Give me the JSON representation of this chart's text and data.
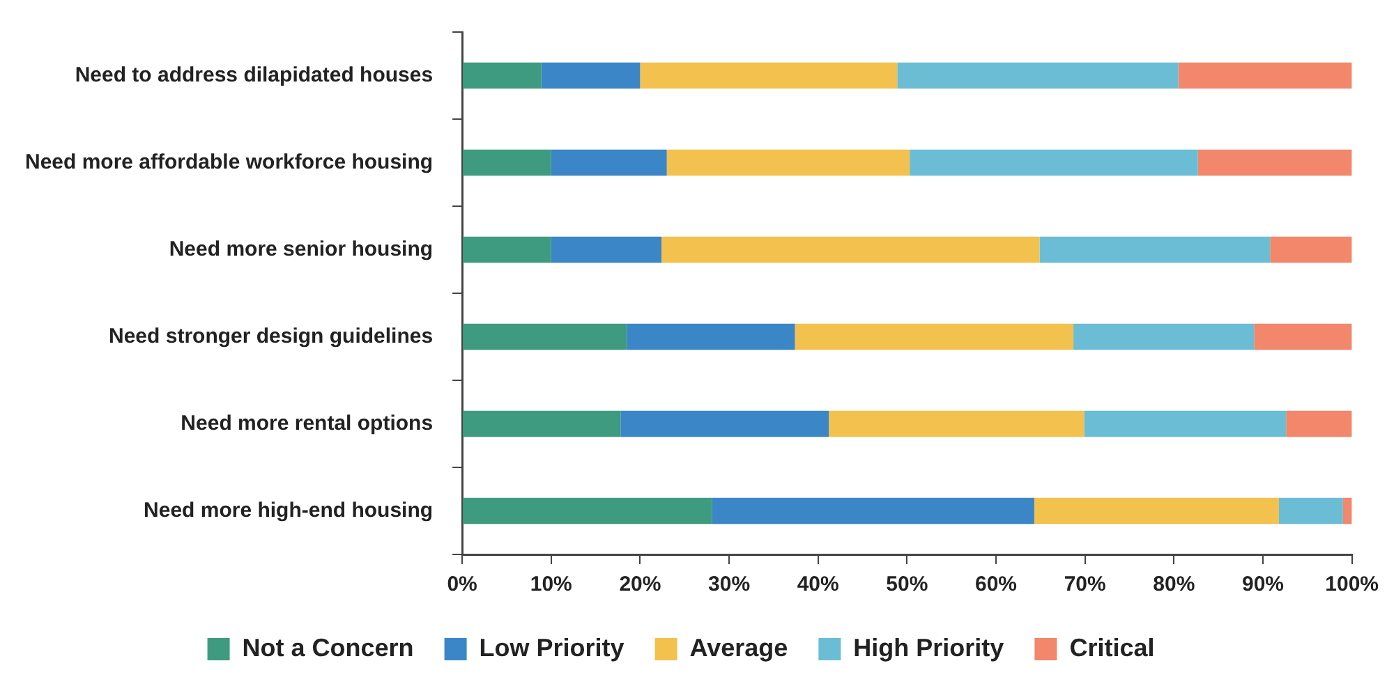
{
  "chart_data": {
    "type": "bar",
    "orientation": "horizontal",
    "stacked": true,
    "legend": "bottom",
    "grid": false,
    "categories": [
      "Need to address dilapidated houses",
      "Need more affordable workforce housing",
      "Need more senior housing",
      "Need stronger design guidelines",
      "Need more rental options",
      "Need more high-end housing"
    ],
    "xlim": [
      0,
      100
    ],
    "xticks": [
      {
        "value": 0,
        "label": "0%"
      },
      {
        "value": 10,
        "label": "10%"
      },
      {
        "value": 20,
        "label": "20%"
      },
      {
        "value": 30,
        "label": "30%"
      },
      {
        "value": 40,
        "label": "40%"
      },
      {
        "value": 50,
        "label": "50%"
      },
      {
        "value": 60,
        "label": "60%"
      },
      {
        "value": 70,
        "label": "70%"
      },
      {
        "value": 80,
        "label": "80%"
      },
      {
        "value": 90,
        "label": "90%"
      },
      {
        "value": 100,
        "label": "100%"
      }
    ],
    "series": [
      {
        "name": "Not a Concern",
        "color": "#3e9b7f",
        "values": [
          8.9,
          10.0,
          10.0,
          18.5,
          17.8,
          28.1
        ]
      },
      {
        "name": "Low Priority",
        "color": "#3a86c6",
        "values": [
          11.1,
          13.0,
          12.4,
          18.9,
          23.4,
          36.2
        ]
      },
      {
        "name": "Average",
        "color": "#f2c14e",
        "values": [
          28.9,
          27.3,
          42.5,
          31.3,
          28.7,
          27.5
        ]
      },
      {
        "name": "High Priority",
        "color": "#6bbdd6",
        "values": [
          31.6,
          32.4,
          25.9,
          20.3,
          22.7,
          7.2
        ]
      },
      {
        "name": "Critical",
        "color": "#f2876b",
        "values": [
          19.5,
          17.3,
          9.2,
          11.0,
          7.4,
          1.0
        ]
      }
    ]
  }
}
